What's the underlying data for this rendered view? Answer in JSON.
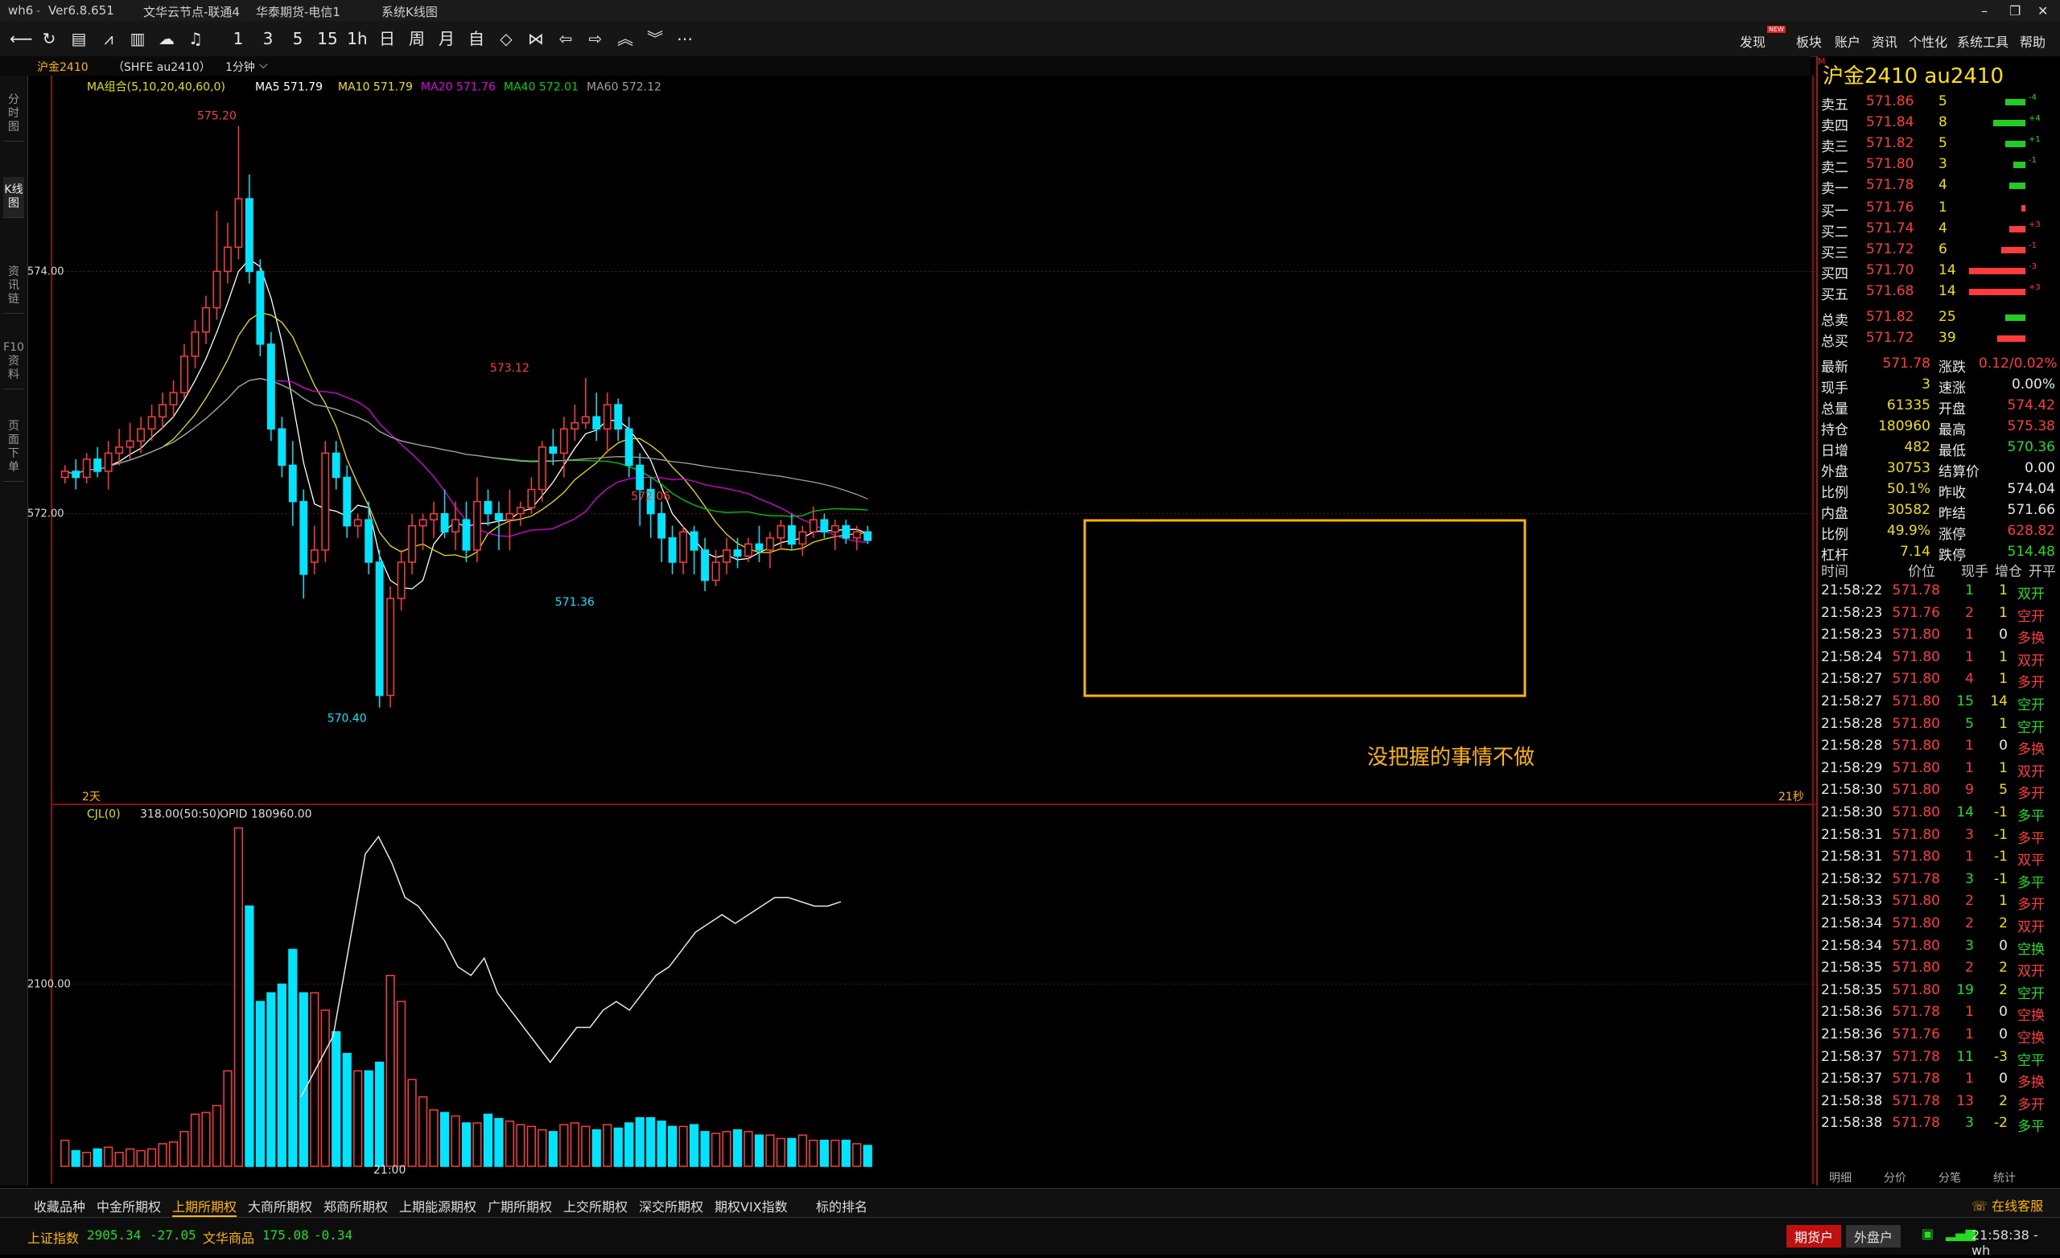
{
  "titlebar": {
    "app": "wh6",
    "version": "Ver6.8.651",
    "server": "文华云节点-联通4",
    "broker": "华泰期货-电信1",
    "view": "系统K线图"
  },
  "toolbar": {
    "icons": [
      "back-icon",
      "refresh-icon",
      "list-icon",
      "line-chart-icon",
      "bar-chart-icon",
      "cloud-icon",
      "bell-icon"
    ],
    "periods": [
      "1",
      "3",
      "5",
      "15",
      "1h",
      "日",
      "周",
      "月",
      "自"
    ],
    "nav_icons": [
      "diamond-icon",
      "shrink-icon",
      "left-arrow-icon",
      "right-arrow-icon",
      "up-chevron-icon",
      "down-chevron-icon",
      "more-icon"
    ],
    "menus": [
      "发现",
      "板块",
      "账户",
      "资讯",
      "个性化",
      "系统工具",
      "帮助"
    ],
    "new_badge": "NEW"
  },
  "subbar": {
    "symbol": "沪金2410",
    "exchange": "（SHFE  au2410）",
    "period": "1分钟"
  },
  "left_tabs": [
    "分时图",
    "K线图",
    "资讯链",
    "F10资料",
    "页面下单"
  ],
  "chart_data": {
    "type": "candlestick",
    "ma_legend": {
      "group": "MA组合(5,10,20,40,60,0)",
      "items": [
        {
          "name": "MA5",
          "value": "571.79",
          "color": "#ffffff"
        },
        {
          "name": "MA10",
          "value": "571.79",
          "color": "#f0e000"
        },
        {
          "name": "MA20",
          "value": "571.76",
          "color": "#e000e0"
        },
        {
          "name": "MA40",
          "value": "572.01",
          "color": "#00d000"
        },
        {
          "name": "MA60",
          "value": "572.12",
          "color": "#a0a0a0"
        }
      ]
    },
    "y_ticks": [
      "574.00",
      "572.00"
    ],
    "y_ticks_values": [
      574,
      572
    ],
    "ylim": [
      569.8,
      575.55
    ],
    "annotations": [
      {
        "text": "575.20",
        "value": 575.2,
        "index": 9
      },
      {
        "text": "573.12",
        "value": 573.12,
        "index": 27
      },
      {
        "text": "570.40",
        "value": 570.4,
        "index": 17
      },
      {
        "text": "572.06",
        "value": 572.06,
        "index": 36
      },
      {
        "text": "571.36",
        "value": 571.36,
        "index": 31
      }
    ],
    "x_left_label": "2天",
    "x_right_label": "21秒",
    "x_time_label": "21:00",
    "box_note": "没把握的事情不做",
    "candles": [
      [
        572.3,
        572.4,
        572.25,
        572.35
      ],
      [
        572.35,
        572.45,
        572.2,
        572.3
      ],
      [
        572.3,
        572.5,
        572.25,
        572.45
      ],
      [
        572.45,
        572.55,
        572.3,
        572.35
      ],
      [
        572.35,
        572.6,
        572.2,
        572.5
      ],
      [
        572.5,
        572.7,
        572.4,
        572.55
      ],
      [
        572.55,
        572.75,
        572.45,
        572.6
      ],
      [
        572.6,
        572.8,
        572.5,
        572.7
      ],
      [
        572.7,
        572.9,
        572.6,
        572.8
      ],
      [
        572.8,
        573.0,
        572.7,
        572.9
      ],
      [
        572.9,
        573.1,
        572.8,
        573.0
      ],
      [
        573.0,
        573.4,
        572.95,
        573.3
      ],
      [
        573.3,
        573.6,
        573.2,
        573.5
      ],
      [
        573.5,
        573.8,
        573.4,
        573.7
      ],
      [
        573.7,
        574.5,
        573.6,
        574.0
      ],
      [
        574.0,
        574.4,
        573.9,
        574.2
      ],
      [
        574.2,
        575.2,
        574.1,
        574.6
      ],
      [
        574.6,
        574.8,
        573.9,
        574.0
      ],
      [
        574.0,
        574.1,
        573.3,
        573.4
      ],
      [
        573.4,
        573.5,
        572.6,
        572.7
      ],
      [
        572.7,
        572.8,
        572.3,
        572.4
      ],
      [
        572.4,
        572.6,
        571.9,
        572.1
      ],
      [
        572.1,
        572.2,
        571.3,
        571.5
      ],
      [
        571.6,
        571.9,
        571.5,
        571.7
      ],
      [
        571.7,
        572.6,
        571.6,
        572.5
      ],
      [
        572.5,
        572.6,
        572.2,
        572.3
      ],
      [
        572.3,
        572.4,
        571.8,
        571.9
      ],
      [
        571.9,
        572.0,
        571.8,
        571.95
      ],
      [
        571.95,
        572.1,
        571.5,
        571.6
      ],
      [
        571.6,
        571.7,
        570.4,
        570.5
      ],
      [
        570.5,
        571.4,
        570.4,
        571.3
      ],
      [
        571.3,
        571.7,
        571.2,
        571.6
      ],
      [
        571.6,
        572.0,
        571.5,
        571.9
      ],
      [
        571.9,
        572.0,
        571.7,
        571.95
      ],
      [
        571.95,
        572.1,
        571.8,
        572.0
      ],
      [
        572.0,
        572.2,
        571.8,
        571.85
      ],
      [
        571.85,
        572.1,
        571.7,
        571.95
      ],
      [
        571.95,
        572.1,
        571.6,
        571.7
      ],
      [
        571.7,
        572.3,
        571.6,
        572.1
      ],
      [
        572.1,
        572.2,
        571.9,
        572.0
      ],
      [
        572.0,
        572.1,
        571.7,
        571.95
      ],
      [
        571.95,
        572.2,
        571.7,
        572.0
      ],
      [
        572.0,
        572.1,
        571.9,
        572.05
      ],
      [
        572.05,
        572.3,
        572.0,
        572.2
      ],
      [
        572.2,
        572.6,
        572.1,
        572.55
      ],
      [
        572.55,
        572.7,
        572.4,
        572.5
      ],
      [
        572.5,
        572.8,
        572.3,
        572.7
      ],
      [
        572.7,
        572.9,
        572.6,
        572.75
      ],
      [
        572.75,
        573.12,
        572.7,
        572.8
      ],
      [
        572.8,
        573.0,
        572.6,
        572.7
      ],
      [
        572.7,
        573.0,
        572.5,
        572.9
      ],
      [
        572.9,
        572.95,
        572.6,
        572.7
      ],
      [
        572.7,
        572.8,
        572.3,
        572.4
      ],
      [
        572.4,
        572.5,
        571.9,
        572.2
      ],
      [
        572.2,
        572.3,
        571.8,
        572.0
      ],
      [
        572.0,
        572.1,
        571.6,
        571.8
      ],
      [
        571.8,
        571.9,
        571.5,
        571.6
      ],
      [
        571.6,
        571.9,
        571.5,
        571.85
      ],
      [
        571.85,
        571.9,
        571.5,
        571.7
      ],
      [
        571.7,
        571.8,
        571.36,
        571.45
      ],
      [
        571.45,
        571.7,
        571.4,
        571.6
      ],
      [
        571.6,
        571.8,
        571.5,
        571.7
      ],
      [
        571.7,
        571.8,
        571.55,
        571.65
      ],
      [
        571.65,
        571.8,
        571.6,
        571.75
      ],
      [
        571.75,
        571.9,
        571.6,
        571.7
      ],
      [
        571.7,
        571.85,
        571.55,
        571.8
      ],
      [
        571.8,
        571.95,
        571.7,
        571.9
      ],
      [
        571.9,
        572.0,
        571.7,
        571.75
      ],
      [
        571.75,
        571.9,
        571.65,
        571.85
      ],
      [
        571.85,
        572.06,
        571.8,
        571.95
      ],
      [
        571.95,
        572.0,
        571.8,
        571.85
      ],
      [
        571.85,
        571.95,
        571.7,
        571.9
      ],
      [
        571.9,
        571.95,
        571.75,
        571.8
      ],
      [
        571.8,
        571.9,
        571.7,
        571.85
      ],
      [
        571.85,
        571.9,
        571.75,
        571.78
      ]
    ],
    "volume_panel": {
      "legend": "CJL(0)",
      "value": "318.00(50:50)",
      "opid": "OPID 180960.00",
      "y_tick": "2100.00",
      "y_tick_value": 2100,
      "ylim": [
        0,
        3950
      ],
      "volumes": [
        300,
        180,
        160,
        200,
        220,
        160,
        200,
        180,
        200,
        260,
        280,
        400,
        600,
        620,
        700,
        1100,
        3900,
        3000,
        1900,
        2000,
        2100,
        2500,
        2000,
        2000,
        1800,
        1550,
        1300,
        1100,
        1100,
        1200,
        2200,
        1900,
        1000,
        800,
        650,
        620,
        580,
        500,
        500,
        600,
        550,
        520,
        480,
        460,
        420,
        400,
        480,
        500,
        460,
        420,
        480,
        440,
        500,
        560,
        560,
        520,
        460,
        460,
        480,
        400,
        380,
        400,
        420,
        400,
        360,
        360,
        320,
        320,
        360,
        300,
        300,
        300,
        300,
        260,
        240
      ],
      "opid_line": [
        3600,
        3800,
        3500,
        3100,
        3000,
        2800,
        2600,
        2300,
        2200,
        2400,
        2000,
        1800,
        1600,
        1400,
        1200,
        1400,
        1600,
        1600,
        1800,
        1900,
        1800,
        2000,
        2200,
        2300,
        2500,
        2700,
        2800,
        2900,
        2800,
        2900,
        3000,
        3100,
        3100,
        3050,
        3000,
        3000,
        3050
      ]
    }
  },
  "quote": {
    "title": "沪金2410  au2410",
    "asks": [
      {
        "label": "卖五",
        "price": "571.86",
        "vol": "5",
        "chg": "-4"
      },
      {
        "label": "卖四",
        "price": "571.84",
        "vol": "8",
        "chg": "+4"
      },
      {
        "label": "卖三",
        "price": "571.82",
        "vol": "5",
        "chg": "+1"
      },
      {
        "label": "卖二",
        "price": "571.80",
        "vol": "3",
        "chg": "-1"
      },
      {
        "label": "卖一",
        "price": "571.78",
        "vol": "4",
        "chg": ""
      }
    ],
    "bids": [
      {
        "label": "买一",
        "price": "571.76",
        "vol": "1",
        "chg": ""
      },
      {
        "label": "买二",
        "price": "571.74",
        "vol": "4",
        "chg": "+3"
      },
      {
        "label": "买三",
        "price": "571.72",
        "vol": "6",
        "chg": "-1"
      },
      {
        "label": "买四",
        "price": "571.70",
        "vol": "14",
        "chg": "-3"
      },
      {
        "label": "买五",
        "price": "571.68",
        "vol": "14",
        "chg": "+3"
      }
    ],
    "total_sell": {
      "label": "总卖",
      "price": "571.82",
      "vol": "25"
    },
    "total_buy": {
      "label": "总买",
      "price": "571.72",
      "vol": "39"
    },
    "stats": [
      {
        "l1": "最新",
        "v1": "571.78",
        "c1": "red",
        "l2": "涨跌",
        "v2": "0.12/0.02%",
        "c2": "red"
      },
      {
        "l1": "现手",
        "v1": "3",
        "c1": "yellow",
        "l2": "速涨",
        "v2": "0.00%",
        "c2": "white"
      },
      {
        "l1": "总量",
        "v1": "61335",
        "c1": "yellow",
        "l2": "开盘",
        "v2": "574.42",
        "c2": "red"
      },
      {
        "l1": "持仓",
        "v1": "180960",
        "c1": "yellow",
        "l2": "最高",
        "v2": "575.38",
        "c2": "red"
      },
      {
        "l1": "日增",
        "v1": "482",
        "c1": "yellow",
        "l2": "最低",
        "v2": "570.36",
        "c2": "green"
      },
      {
        "l1": "外盘",
        "v1": "30753",
        "c1": "yellow",
        "l2": "结算价",
        "v2": "0.00",
        "c2": "white"
      },
      {
        "l1": "比例",
        "v1": "50.1%",
        "c1": "yellow",
        "l2": "昨收",
        "v2": "574.04",
        "c2": "white"
      },
      {
        "l1": "内盘",
        "v1": "30582",
        "c1": "yellow",
        "l2": "昨结",
        "v2": "571.66",
        "c2": "white"
      },
      {
        "l1": "比例",
        "v1": "49.9%",
        "c1": "yellow",
        "l2": "涨停",
        "v2": "628.82",
        "c2": "red"
      },
      {
        "l1": "杠杆",
        "v1": "7.14",
        "c1": "yellow",
        "l2": "跌停",
        "v2": "514.48",
        "c2": "green"
      }
    ],
    "tick_headers": [
      "时间",
      "价位",
      "现手",
      "增仓",
      "开平"
    ],
    "ticks": [
      [
        "21:58:22",
        "571.78",
        "1",
        "1",
        "双开"
      ],
      [
        "21:58:23",
        "571.76",
        "2",
        "1",
        "空开"
      ],
      [
        "21:58:23",
        "571.80",
        "1",
        "0",
        "多换"
      ],
      [
        "21:58:24",
        "571.80",
        "1",
        "1",
        "双开"
      ],
      [
        "21:58:27",
        "571.80",
        "4",
        "1",
        "多开"
      ],
      [
        "21:58:27",
        "571.80",
        "15",
        "14",
        "空开"
      ],
      [
        "21:58:28",
        "571.80",
        "5",
        "1",
        "空开"
      ],
      [
        "21:58:28",
        "571.80",
        "1",
        "0",
        "多换"
      ],
      [
        "21:58:29",
        "571.80",
        "1",
        "1",
        "双开"
      ],
      [
        "21:58:30",
        "571.80",
        "9",
        "5",
        "多开"
      ],
      [
        "21:58:30",
        "571.80",
        "14",
        "-1",
        "多平"
      ],
      [
        "21:58:31",
        "571.80",
        "3",
        "-1",
        "多平"
      ],
      [
        "21:58:31",
        "571.80",
        "1",
        "-1",
        "双平"
      ],
      [
        "21:58:32",
        "571.78",
        "3",
        "-1",
        "多平"
      ],
      [
        "21:58:33",
        "571.80",
        "2",
        "1",
        "多开"
      ],
      [
        "21:58:34",
        "571.80",
        "2",
        "2",
        "双开"
      ],
      [
        "21:58:34",
        "571.80",
        "3",
        "0",
        "空换"
      ],
      [
        "21:58:35",
        "571.80",
        "2",
        "2",
        "双开"
      ],
      [
        "21:58:35",
        "571.80",
        "19",
        "2",
        "空开"
      ],
      [
        "21:58:36",
        "571.78",
        "1",
        "0",
        "空换"
      ],
      [
        "21:58:36",
        "571.76",
        "1",
        "0",
        "空换"
      ],
      [
        "21:58:37",
        "571.78",
        "11",
        "-3",
        "空平"
      ],
      [
        "21:58:37",
        "571.78",
        "1",
        "0",
        "多换"
      ],
      [
        "21:58:38",
        "571.78",
        "13",
        "2",
        "多开"
      ],
      [
        "21:58:38",
        "571.78",
        "3",
        "-2",
        "多平"
      ]
    ],
    "tick_colors": [
      "green",
      "red",
      "red",
      "red",
      "red",
      "green",
      "green",
      "red",
      "red",
      "red",
      "green",
      "red",
      "red",
      "green",
      "red",
      "red",
      "green",
      "red",
      "green",
      "red",
      "red",
      "green",
      "red",
      "red",
      "green"
    ],
    "bottom_tabs": [
      "明细",
      "分价",
      "分笔",
      "统计"
    ]
  },
  "bottom_tabs": [
    "收藏品种",
    "中金所期权",
    "上期所期权",
    "大商所期权",
    "郑商所期权",
    "上期能源期权",
    "广期所期权",
    "上交所期权",
    "深交所期权",
    "期权VIX指数",
    "标的排名"
  ],
  "online_service": "在线客服",
  "status": {
    "index1_name": "上证指数",
    "index1_value": "2905.34",
    "index1_change": "-27.05",
    "index2_name": "文华商品",
    "index2_value": "175.08",
    "index2_change": "-0.34",
    "btn_futures": "期货户",
    "btn_outer": "外盘户",
    "time": "21:58:38 - wh"
  },
  "colors": {
    "up": "#ff3b3b",
    "down": "#00e5ff",
    "box": "#ffb400",
    "grid": "#6a1010"
  }
}
